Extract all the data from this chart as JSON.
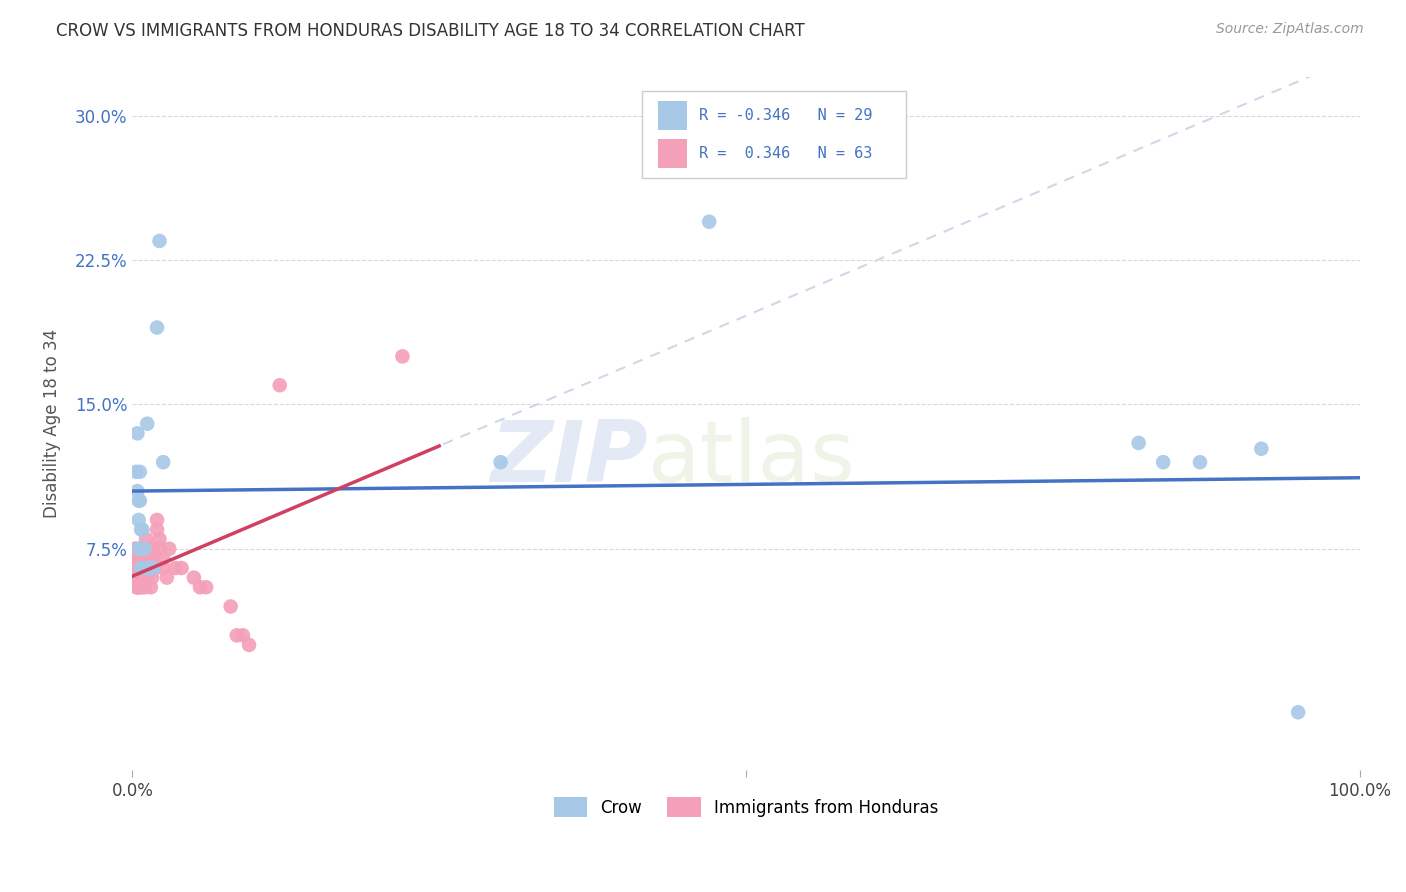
{
  "title": "CROW VS IMMIGRANTS FROM HONDURAS DISABILITY AGE 18 TO 34 CORRELATION CHART",
  "source": "Source: ZipAtlas.com",
  "ylabel": "Disability Age 18 to 34",
  "legend_labels": [
    "Crow",
    "Immigrants from Honduras"
  ],
  "crow_R": -0.346,
  "crow_N": 29,
  "honduras_R": 0.346,
  "honduras_N": 63,
  "xlim": [
    0.0,
    1.0
  ],
  "ylim": [
    -0.04,
    0.32
  ],
  "yticks": [
    0.075,
    0.15,
    0.225,
    0.3
  ],
  "yticklabels": [
    "7.5%",
    "15.0%",
    "22.5%",
    "30.0%"
  ],
  "xtick_positions": [
    0.0,
    0.5,
    1.0
  ],
  "xticklabels": [
    "0.0%",
    "",
    "100.0%"
  ],
  "crow_color": "#a8c8e8",
  "crow_line_color": "#4472c4",
  "honduras_color": "#f4a0b8",
  "honduras_line_color": "#d04060",
  "dashed_line_color": "#d0d8e8",
  "background_color": "#ffffff",
  "grid_color": "#d8d8d8",
  "watermark_zip": "ZIP",
  "watermark_atlas": "atlas",
  "title_color": "#333333",
  "legend_R_color": "#4472c4",
  "source_color": "#999999",
  "ylabel_color": "#555555",
  "ytick_color": "#4472c4",
  "xtick_color": "#444444",
  "crow_scatter_x": [
    0.003,
    0.004,
    0.004,
    0.005,
    0.005,
    0.005,
    0.006,
    0.006,
    0.007,
    0.007,
    0.007,
    0.008,
    0.009,
    0.01,
    0.011,
    0.012,
    0.013,
    0.015,
    0.017,
    0.02,
    0.022,
    0.025,
    0.3,
    0.47,
    0.82,
    0.84,
    0.87,
    0.92,
    0.95
  ],
  "crow_scatter_y": [
    0.115,
    0.105,
    0.135,
    0.1,
    0.09,
    0.075,
    0.115,
    0.1,
    0.085,
    0.075,
    0.065,
    0.085,
    0.065,
    0.075,
    0.065,
    0.14,
    0.065,
    0.065,
    0.065,
    0.19,
    0.235,
    0.12,
    0.12,
    0.245,
    0.13,
    0.12,
    0.12,
    0.127,
    -0.01
  ],
  "honduras_scatter_x": [
    0.002,
    0.002,
    0.002,
    0.002,
    0.003,
    0.003,
    0.003,
    0.003,
    0.003,
    0.004,
    0.004,
    0.004,
    0.005,
    0.005,
    0.005,
    0.005,
    0.006,
    0.006,
    0.006,
    0.007,
    0.007,
    0.007,
    0.007,
    0.008,
    0.008,
    0.009,
    0.009,
    0.009,
    0.01,
    0.01,
    0.01,
    0.011,
    0.011,
    0.012,
    0.012,
    0.013,
    0.014,
    0.015,
    0.015,
    0.016,
    0.016,
    0.017,
    0.018,
    0.018,
    0.02,
    0.02,
    0.022,
    0.022,
    0.025,
    0.025,
    0.028,
    0.03,
    0.035,
    0.04,
    0.05,
    0.055,
    0.06,
    0.08,
    0.085,
    0.09,
    0.095,
    0.12,
    0.22
  ],
  "honduras_scatter_y": [
    0.065,
    0.07,
    0.06,
    0.075,
    0.065,
    0.07,
    0.06,
    0.055,
    0.075,
    0.055,
    0.06,
    0.065,
    0.06,
    0.055,
    0.065,
    0.07,
    0.065,
    0.055,
    0.07,
    0.06,
    0.065,
    0.07,
    0.075,
    0.055,
    0.06,
    0.06,
    0.065,
    0.07,
    0.065,
    0.055,
    0.07,
    0.075,
    0.08,
    0.065,
    0.06,
    0.07,
    0.075,
    0.065,
    0.055,
    0.06,
    0.075,
    0.07,
    0.065,
    0.065,
    0.085,
    0.09,
    0.075,
    0.08,
    0.065,
    0.07,
    0.06,
    0.075,
    0.065,
    0.065,
    0.06,
    0.055,
    0.055,
    0.045,
    0.03,
    0.03,
    0.025,
    0.16,
    0.175
  ]
}
